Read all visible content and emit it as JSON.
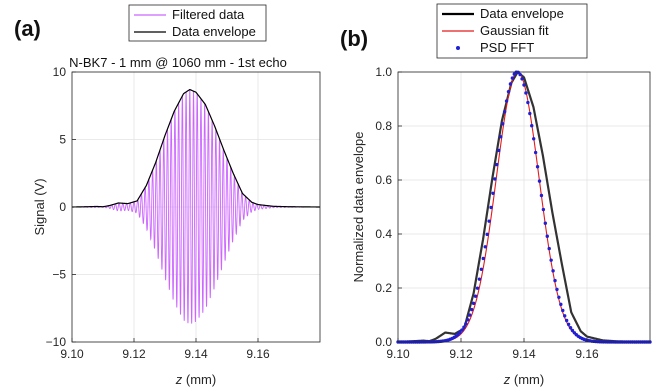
{
  "chart_data": [
    {
      "type": "line",
      "panel_label": "(a)",
      "title": "N-BK7 - 1 mm @ 1060 mm - 1st echo",
      "xlabel_var": "z",
      "xlabel_unit": " (mm)",
      "ylabel": "Signal (V)",
      "xlim": [
        9.1,
        9.18
      ],
      "ylim": [
        -10,
        10
      ],
      "xticks": [
        "9.10",
        "9.12",
        "9.14",
        "9.16"
      ],
      "xtick_values": [
        9.1,
        9.12,
        9.14,
        9.16
      ],
      "yticks": [
        "10",
        "5",
        "0",
        "−5",
        "−10"
      ],
      "ytick_values": [
        10,
        5,
        0,
        -5,
        -10
      ],
      "grid": true,
      "legend_position": "top-center",
      "series": [
        {
          "name": "Filtered data",
          "color": "#cc66ff",
          "kind": "oscillation",
          "envelope_ref": "Data envelope"
        },
        {
          "name": "Data envelope",
          "color": "#000000",
          "x": [
            9.1,
            9.105,
            9.108,
            9.11,
            9.112,
            9.115,
            9.118,
            9.121,
            9.124,
            9.127,
            9.13,
            9.133,
            9.136,
            9.138,
            9.14,
            9.143,
            9.146,
            9.149,
            9.152,
            9.155,
            9.158,
            9.16,
            9.165,
            9.17,
            9.18
          ],
          "y": [
            0.0,
            0.02,
            0.04,
            0.02,
            0.1,
            0.3,
            0.25,
            0.45,
            1.6,
            3.3,
            5.3,
            7.1,
            8.4,
            8.7,
            8.5,
            7.6,
            6.0,
            4.2,
            2.5,
            1.0,
            0.35,
            0.18,
            0.05,
            0.02,
            0.0
          ]
        }
      ]
    },
    {
      "type": "line",
      "panel_label": "(b)",
      "title": "",
      "xlabel_var": "z",
      "xlabel_unit": " (mm)",
      "ylabel": "Normalized data envelope",
      "xlim": [
        9.1,
        9.18
      ],
      "ylim": [
        0,
        1
      ],
      "xticks": [
        "9.10",
        "9.12",
        "9.14",
        "9.16"
      ],
      "xtick_values": [
        9.1,
        9.12,
        9.14,
        9.16
      ],
      "yticks": [
        "1.0",
        "0.8",
        "0.6",
        "0.4",
        "0.2",
        "0.0"
      ],
      "ytick_values": [
        1.0,
        0.8,
        0.6,
        0.4,
        0.2,
        0.0
      ],
      "grid": true,
      "legend_position": "top-center",
      "series": [
        {
          "name": "Data envelope",
          "color": "#000000",
          "x": [
            9.1,
            9.105,
            9.108,
            9.11,
            9.112,
            9.115,
            9.118,
            9.121,
            9.124,
            9.127,
            9.13,
            9.133,
            9.136,
            9.138,
            9.14,
            9.143,
            9.146,
            9.149,
            9.152,
            9.155,
            9.158,
            9.16,
            9.165,
            9.17,
            9.18
          ],
          "y": [
            0.0,
            0.003,
            0.005,
            0.003,
            0.012,
            0.035,
            0.03,
            0.05,
            0.18,
            0.38,
            0.61,
            0.82,
            0.96,
            1.0,
            0.98,
            0.87,
            0.69,
            0.48,
            0.29,
            0.11,
            0.04,
            0.02,
            0.006,
            0.002,
            0.0
          ]
        },
        {
          "name": "Gaussian fit",
          "color": "#e41a1c",
          "kind": "gaussian",
          "center": 9.138,
          "sigma": 0.0068
        },
        {
          "name": "PSD FFT",
          "color": "#1f1fd6",
          "kind": "gaussian-dots",
          "center": 9.1378,
          "sigma": 0.007
        }
      ]
    }
  ]
}
